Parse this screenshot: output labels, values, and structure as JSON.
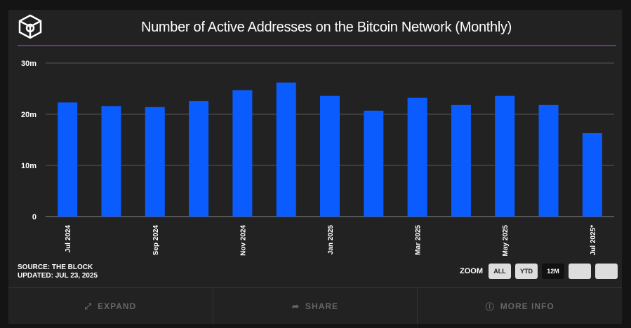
{
  "title": "Number of Active Addresses on the Bitcoin Network (Monthly)",
  "source": "SOURCE: THE BLOCK",
  "updated": "UPDATED: JUL 23, 2025",
  "zoom": {
    "label": "ZOOM",
    "buttons": [
      "ALL",
      "YTD",
      "12M",
      "",
      ""
    ],
    "active": "12M"
  },
  "footer": {
    "expand": "EXPAND",
    "share": "SHARE",
    "more_info": "MORE INFO"
  },
  "colors": {
    "bar": "#0a5cff",
    "accent": "#7a2aa8"
  },
  "chart_data": {
    "type": "bar",
    "title": "Number of Active Addresses on the Bitcoin Network (Monthly)",
    "categories": [
      "Jul 2024",
      "Aug 2024",
      "Sep 2024",
      "Oct 2024",
      "Nov 2024",
      "Dec 2024",
      "Jan 2025",
      "Feb 2025",
      "Mar 2025",
      "Apr 2025",
      "May 2025",
      "Jun 2025",
      "Jul 2025*"
    ],
    "tick_labels": [
      "Jul 2024",
      "",
      "Sep 2024",
      "",
      "Nov 2024",
      "",
      "Jan 2025",
      "",
      "Mar 2025",
      "",
      "May 2025",
      "",
      "Jul 2025*"
    ],
    "values": [
      22.3,
      21.6,
      21.4,
      22.6,
      24.7,
      26.2,
      23.6,
      20.7,
      23.2,
      21.8,
      23.6,
      21.8,
      16.3
    ],
    "unit": "m",
    "yticks": [
      {
        "v": 0,
        "label": "0"
      },
      {
        "v": 10,
        "label": "10m"
      },
      {
        "v": 20,
        "label": "20m"
      },
      {
        "v": 30,
        "label": "30m"
      }
    ],
    "ylim": [
      0,
      30
    ],
    "grid": true
  }
}
